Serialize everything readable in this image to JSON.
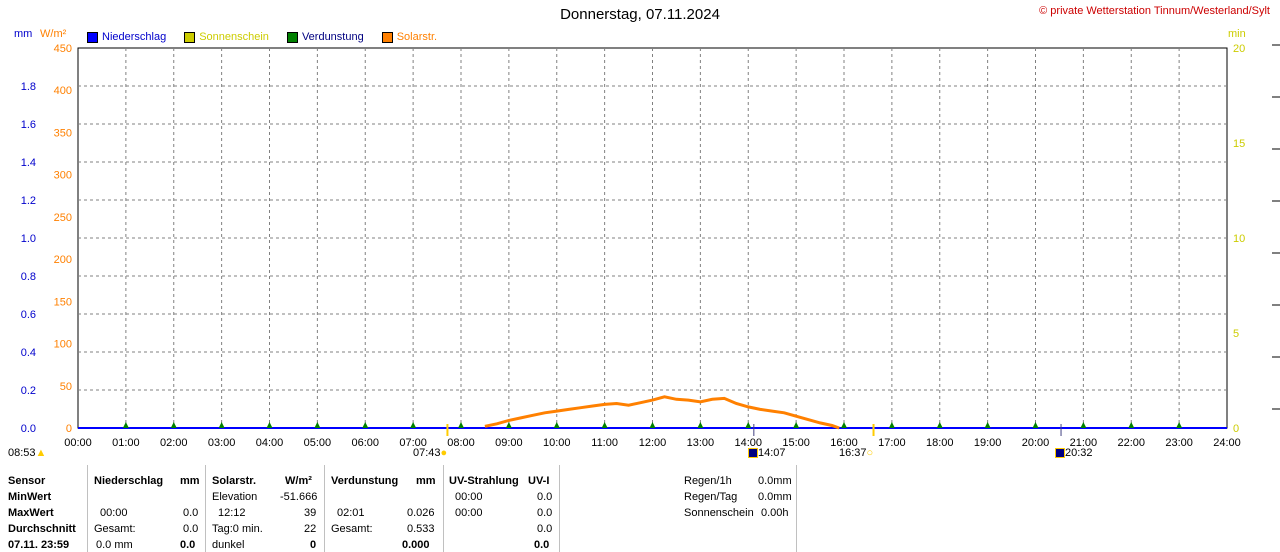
{
  "title": "Donnerstag, 07.11.2024",
  "copyright": "© private Wetterstation Tinnum/Westerland/Sylt",
  "legend": [
    {
      "label": "Niederschlag",
      "color": "#0000ff",
      "text_color": "#0000cc"
    },
    {
      "label": "Sonnenschein",
      "color": "#cccc00",
      "text_color": "#cccc00"
    },
    {
      "label": "Verdunstung",
      "color": "#008000",
      "text_color": "#000080"
    },
    {
      "label": "Solarstr.",
      "color": "#ff8000",
      "text_color": "#ff8000"
    }
  ],
  "axes": {
    "left_unit_mm": "mm",
    "left_unit_wm2": "W/m²",
    "right_unit": "min",
    "mm_ticks": [
      "1.8",
      "1.6",
      "1.4",
      "1.2",
      "1.0",
      "0.8",
      "0.6",
      "0.4",
      "0.2",
      "0.0"
    ],
    "wm2_ticks": [
      "450",
      "400",
      "350",
      "300",
      "250",
      "200",
      "150",
      "100",
      "50",
      "0"
    ],
    "min_ticks": [
      "20",
      "15",
      "10",
      "5",
      "0"
    ],
    "x_ticks": [
      "00:00",
      "01:00",
      "02:00",
      "03:00",
      "04:00",
      "05:00",
      "06:00",
      "07:00",
      "08:00",
      "09:00",
      "10:00",
      "11:00",
      "12:00",
      "13:00",
      "14:00",
      "15:00",
      "16:00",
      "17:00",
      "18:00",
      "19:00",
      "20:00",
      "21:00",
      "22:00",
      "23:00",
      "24:00"
    ]
  },
  "colors": {
    "mm": "#0000cc",
    "wm2": "#ff8000",
    "min": "#cccc00",
    "grid": "#808080",
    "evap": "#008000"
  },
  "markers": {
    "moonrise": "08:53",
    "sunrise": "07:43",
    "moon_transit": "14:07",
    "sunset": "16:37",
    "moon_marker": "20:32"
  },
  "chart_data": {
    "type": "line",
    "title": "Donnerstag, 07.11.2024",
    "xlim": [
      0,
      24
    ],
    "y_left_mm": [
      0,
      2.0
    ],
    "y_left_wm2": [
      0,
      450
    ],
    "y_right_min": [
      0,
      20
    ],
    "grid": true,
    "legend_position": "top-left",
    "series": [
      {
        "name": "Solarstr.",
        "color": "#ff8000",
        "x": [
          8.5,
          8.75,
          9.0,
          9.25,
          9.5,
          9.75,
          10.0,
          10.25,
          10.5,
          10.75,
          11.0,
          11.25,
          11.5,
          11.75,
          12.0,
          12.25,
          12.5,
          12.75,
          13.0,
          13.25,
          13.5,
          13.75,
          14.0,
          14.25,
          14.5,
          14.75,
          15.0,
          15.25,
          15.5,
          15.75,
          15.9
        ],
        "y": [
          2,
          5,
          9,
          12,
          15,
          18,
          20,
          22,
          24,
          26,
          28,
          29,
          27,
          30,
          33,
          37,
          34,
          33,
          31,
          34,
          35,
          29,
          25,
          22,
          20,
          18,
          14,
          10,
          6,
          3,
          0
        ]
      },
      {
        "name": "Verdunstung",
        "color": "#008000",
        "x": [
          1,
          2,
          3,
          4,
          5,
          6,
          7,
          8,
          9,
          10,
          11,
          12,
          13,
          14,
          15,
          16,
          17,
          18,
          19,
          20,
          21,
          22,
          23
        ],
        "y": [
          0.026,
          0.026,
          0.026,
          0.026,
          0.026,
          0.026,
          0.026,
          0.026,
          0.026,
          0.026,
          0.026,
          0.026,
          0.026,
          0.026,
          0.026,
          0.026,
          0.026,
          0.026,
          0.026,
          0.026,
          0.026,
          0.026,
          0.026
        ]
      },
      {
        "name": "Niederschlag",
        "color": "#0000ff",
        "x": [
          0,
          24
        ],
        "y": [
          0,
          0
        ]
      },
      {
        "name": "Sonnenschein",
        "color": "#cccc00",
        "x": [
          0,
          24
        ],
        "y": [
          0,
          0
        ]
      }
    ]
  },
  "stats": {
    "row_labels": [
      "Sensor",
      "MinWert",
      "MaxWert",
      "Durchschnitt",
      "07.11. 23:59"
    ],
    "niederschlag": {
      "header": "Niederschlag",
      "unit": "mm",
      "max_time": "00:00",
      "max_val": "0.0",
      "gesamt_label": "Gesamt:",
      "gesamt_val": "0.0",
      "cur": "0.0 mm",
      "cur_val": "0.0"
    },
    "solar": {
      "header": "Solarstr.",
      "unit": "W/m²",
      "elev_label": "Elevation",
      "elev_val": "-51.666",
      "max_time": "12:12",
      "max_val": "39",
      "tag_label": "Tag:0 min.",
      "tag_val": "22",
      "dunkel_label": "dunkel",
      "dunkel_val": "0"
    },
    "verdunstung": {
      "header": "Verdunstung",
      "unit": "mm",
      "max_time": "02:01",
      "max_val": "0.026",
      "gesamt_label": "Gesamt:",
      "gesamt_val": "0.533",
      "cur_val": "0.000"
    },
    "uv": {
      "header": "UV-Strahlung",
      "unit": "UV-I",
      "min_time": "00:00",
      "min_val": "0.0",
      "max_time": "00:00",
      "max_val": "0.0",
      "avg_val": "0.0",
      "cur_val": "0.0"
    },
    "rain": {
      "regen_h_label": "Regen/1h",
      "regen_h_val": "0.0mm",
      "regen_tag_label": "Regen/Tag",
      "regen_tag_val": "0.0mm",
      "sonne_label": "Sonnenschein",
      "sonne_val": "0.00h"
    }
  }
}
